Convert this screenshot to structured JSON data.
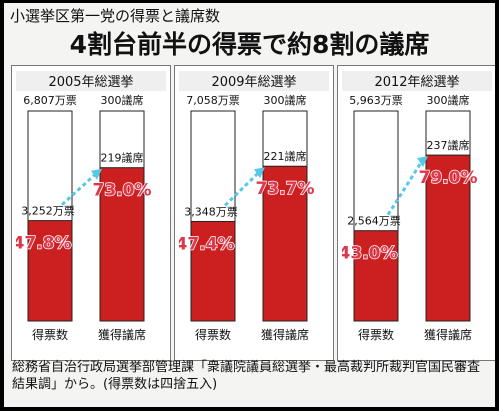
{
  "heading": "小選挙区第一党の得票と議席数",
  "headline": "4割台前半の得票で約8割の議席",
  "source": "総務省自治行政局選挙部管理課「衆議院議員総選挙・最高裁判所裁判官国民審査結果調」から。(得票数は四捨五入)",
  "colors": {
    "bar": "#cc1f1f",
    "outline": "#222222",
    "arrow": "#56c9e8",
    "percent": "#e0364a"
  },
  "chart_data": [
    {
      "type": "bar",
      "title": "2005年総選挙",
      "categories": [
        "得票数",
        "獲得議席"
      ],
      "totals": [
        "6,807万票",
        "300議席"
      ],
      "values_labels": [
        "3,252万票",
        "219議席"
      ],
      "percent_labels": [
        "47.8%",
        "73.0%"
      ],
      "values": [
        47.8,
        73.0
      ],
      "ylim": [
        0,
        100
      ]
    },
    {
      "type": "bar",
      "title": "2009年総選挙",
      "categories": [
        "得票数",
        "獲得議席"
      ],
      "totals": [
        "7,058万票",
        "300議席"
      ],
      "values_labels": [
        "3,348万票",
        "221議席"
      ],
      "percent_labels": [
        "47.4%",
        "73.7%"
      ],
      "values": [
        47.4,
        73.7
      ],
      "ylim": [
        0,
        100
      ]
    },
    {
      "type": "bar",
      "title": "2012年総選挙",
      "categories": [
        "得票数",
        "獲得議席"
      ],
      "totals": [
        "5,963万票",
        "300議席"
      ],
      "values_labels": [
        "2,564万票",
        "237議席"
      ],
      "percent_labels": [
        "43.0%",
        "79.0%"
      ],
      "values": [
        43.0,
        79.0
      ],
      "ylim": [
        0,
        100
      ]
    }
  ]
}
